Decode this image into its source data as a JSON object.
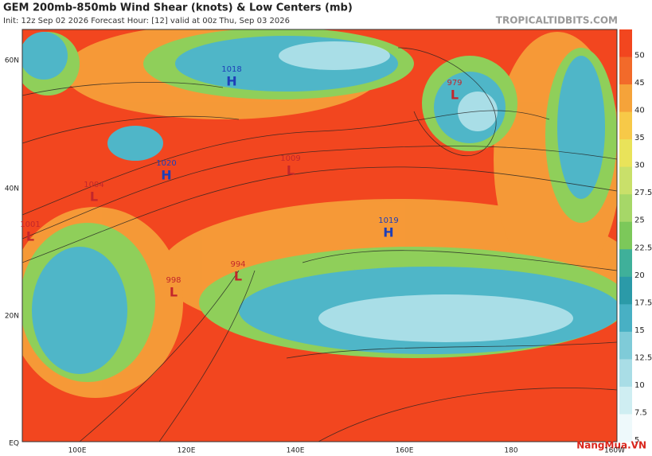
{
  "header": {
    "title": "GEM 200mb-850mb Wind Shear (knots) & Low Centers (mb)",
    "subtitle": "Init: 12z Sep 02 2026   Forecast Hour: [12]   valid at 00z Thu, Sep 03 2026",
    "source": "TROPICALTIDBITS.COM"
  },
  "map": {
    "lat_labels": [
      "60N",
      "40N",
      "20N",
      "EQ"
    ],
    "lon_labels": [
      "100E",
      "120E",
      "140E",
      "160E",
      "180",
      "160W"
    ],
    "centers": [
      {
        "pressure": "1018",
        "kind": "H"
      },
      {
        "pressure": "979",
        "kind": "L"
      },
      {
        "pressure": "1020",
        "kind": "H"
      },
      {
        "pressure": "1009",
        "kind": "L"
      },
      {
        "pressure": "1004",
        "kind": "L"
      },
      {
        "pressure": "1001",
        "kind": "L"
      },
      {
        "pressure": "1019",
        "kind": "H"
      },
      {
        "pressure": "994",
        "kind": "L"
      },
      {
        "pressure": "998",
        "kind": "L"
      }
    ]
  },
  "colorbar": {
    "ticks": [
      "50",
      "45",
      "40",
      "35",
      "30",
      "27.5",
      "25",
      "22.5",
      "20",
      "17.5",
      "15",
      "12.5",
      "10",
      "7.5",
      "5"
    ]
  },
  "watermark": "NangMua.VN"
}
